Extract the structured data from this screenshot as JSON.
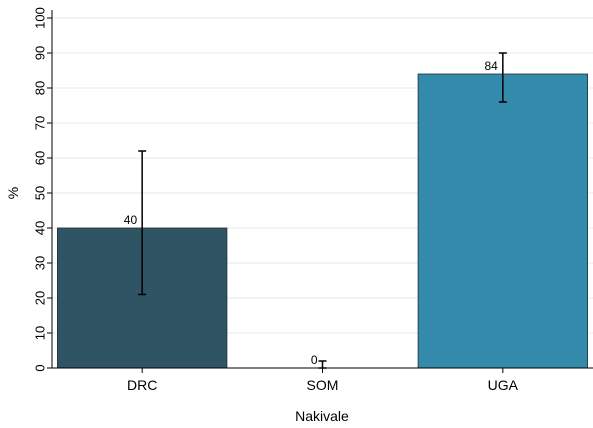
{
  "chart_data": {
    "type": "bar",
    "categories": [
      "DRC",
      "SOM",
      "UGA"
    ],
    "values": [
      40,
      0,
      84
    ],
    "error_bars": [
      {
        "low": 21,
        "high": 62
      },
      {
        "low": 0,
        "high": 2
      },
      {
        "low": 76,
        "high": 90
      }
    ],
    "data_labels": [
      "40",
      "0",
      "84"
    ],
    "bar_colors": [
      "#2f5565",
      "#2f5565",
      "#348aab"
    ],
    "title": "",
    "xlabel": "Nakivale",
    "ylabel": "%",
    "ylim": [
      0,
      100
    ],
    "yticks": [
      0,
      10,
      20,
      30,
      40,
      50,
      60,
      70,
      80,
      90,
      100
    ],
    "ytick_labels": [
      "0",
      "10",
      "20",
      "30",
      "40",
      "50",
      "60",
      "70",
      "80",
      "90",
      "100"
    ],
    "grid": true,
    "legend": "none"
  }
}
